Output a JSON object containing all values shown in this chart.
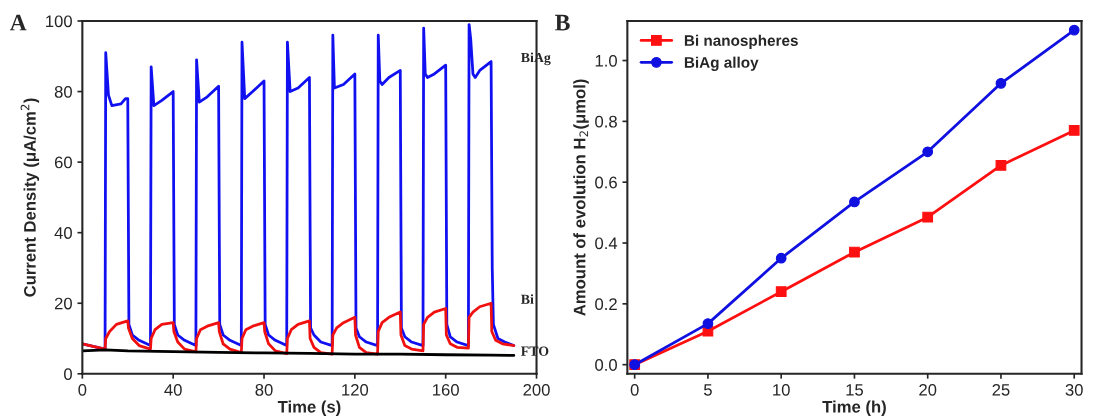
{
  "chart_data": [
    {
      "type": "line",
      "title": "A",
      "xlabel": "Time (s)",
      "ylabel": "Current Density (μA/cm$^{2}$)",
      "xlim": [
        0,
        200
      ],
      "ylim": [
        0,
        100
      ],
      "xticks": [
        0,
        40,
        80,
        120,
        160,
        200
      ],
      "yticks": [
        0,
        20,
        40,
        60,
        80,
        100
      ],
      "grid": false,
      "legend": false,
      "marker": "none",
      "line_style": "solid",
      "series": [
        {
          "name": "BiAg",
          "color": "#1010f0",
          "x": [
            0,
            10,
            10.3,
            11.5,
            13,
            17,
            19,
            20,
            20.5,
            22,
            25,
            30,
            30.3,
            31.5,
            35,
            40,
            40.5,
            42,
            45,
            50,
            50.3,
            51.5,
            55,
            60,
            60.5,
            62,
            65,
            70,
            70.3,
            71.5,
            75,
            80,
            80.5,
            82,
            85,
            90,
            90.3,
            91.5,
            95,
            100,
            100.5,
            102,
            105,
            110,
            110.3,
            111,
            115,
            120,
            120.5,
            122,
            125,
            130,
            130.3,
            131,
            132,
            135,
            140,
            140.5,
            142,
            145,
            150,
            150.3,
            151,
            152,
            155,
            160,
            160.5,
            162,
            165,
            170,
            170.3,
            171,
            172,
            173,
            175,
            180,
            180.5,
            181,
            183,
            186,
            190
          ],
          "values": [
            8.5,
            7,
            91,
            79,
            76,
            76.5,
            78,
            78,
            14,
            11,
            9.5,
            8,
            87,
            76,
            77.5,
            80,
            14,
            11,
            9.5,
            8,
            89,
            77,
            78.5,
            81.5,
            14,
            11,
            9.5,
            8,
            94,
            78,
            80,
            83,
            14,
            11,
            9.5,
            8,
            94,
            80,
            81,
            84,
            13,
            11,
            9,
            8,
            96,
            81,
            82,
            85,
            13,
            10.5,
            9,
            8,
            96,
            83,
            82,
            84,
            86,
            13,
            10.5,
            9,
            8,
            98,
            85,
            84,
            85,
            87.5,
            14,
            10.5,
            9,
            8,
            99,
            95,
            85,
            84,
            86,
            88.5,
            30,
            14,
            10,
            9,
            8
          ]
        },
        {
          "name": "Bi",
          "color": "#f01010",
          "x": [
            0,
            10,
            10.3,
            12,
            15,
            20,
            20.3,
            22,
            25,
            30,
            30.3,
            32,
            35,
            40,
            40.3,
            42,
            45,
            50,
            50.3,
            52,
            55,
            60,
            60.3,
            62,
            65,
            70,
            70.3,
            72,
            75,
            80,
            80.3,
            82,
            85,
            90,
            90.3,
            92,
            95,
            100,
            100.3,
            102,
            105,
            110,
            110.3,
            112,
            115,
            120,
            120.3,
            122,
            125,
            130,
            130.3,
            132,
            135,
            140,
            140.3,
            142,
            145,
            150,
            150.3,
            152,
            155,
            160,
            160.3,
            162,
            165,
            170,
            170.3,
            172,
            175,
            180,
            180.3,
            182,
            185,
            190
          ],
          "values": [
            8.5,
            7,
            10,
            12,
            14,
            15,
            13,
            10,
            8,
            7,
            10,
            12.5,
            14,
            14.5,
            12,
            9,
            7,
            6.2,
            10,
            12.5,
            13.5,
            14.5,
            12,
            8.5,
            7,
            6,
            10,
            12.5,
            13.5,
            14.5,
            12,
            8.5,
            6.5,
            5.7,
            10,
            12.5,
            14,
            15,
            10,
            7.5,
            6,
            5.6,
            11,
            13,
            14.5,
            16,
            11,
            7.5,
            6,
            5.6,
            12,
            14.5,
            16,
            17.5,
            11,
            8,
            7,
            6.5,
            14,
            16,
            17.5,
            18.5,
            11,
            8.5,
            7.5,
            7.3,
            16,
            17.5,
            19,
            20,
            12,
            9.5,
            8.5,
            8
          ]
        },
        {
          "name": "FTO",
          "color": "#000000",
          "x": [
            0,
            10,
            20,
            40,
            60,
            80,
            100,
            120,
            140,
            160,
            180,
            190
          ],
          "values": [
            6.5,
            6.8,
            6.5,
            6.3,
            6.1,
            5.9,
            5.8,
            5.6,
            5.6,
            5.4,
            5.3,
            5.2
          ]
        }
      ]
    },
    {
      "type": "line",
      "title": "B",
      "xlabel": "Time (h)",
      "ylabel": "Amount of evolution H$_{2}$(μmol)",
      "xlim": [
        -0.5,
        30.5
      ],
      "ylim": [
        -0.03,
        1.13
      ],
      "xticks": [
        0,
        5,
        10,
        15,
        20,
        25,
        30
      ],
      "yticks": [
        {
          "value": 0,
          "label": "0.0"
        },
        0.2,
        0.4,
        0.6,
        0.8,
        {
          "value": 1,
          "label": "1.0"
        }
      ],
      "grid": false,
      "legend": "top left",
      "line_style": "solid",
      "x": [
        0,
        5,
        10,
        15,
        20,
        25,
        30
      ],
      "series": [
        {
          "name": "Bi nanospheres",
          "color": "#ff1010",
          "marker": "square",
          "values": [
            0,
            0.11,
            0.24,
            0.37,
            0.485,
            0.655,
            0.77
          ]
        },
        {
          "name": "BiAg alloy",
          "color": "#1010e0",
          "marker": "circle",
          "values": [
            0,
            0.135,
            0.35,
            0.535,
            0.7,
            0.925,
            1.1
          ]
        }
      ]
    }
  ]
}
